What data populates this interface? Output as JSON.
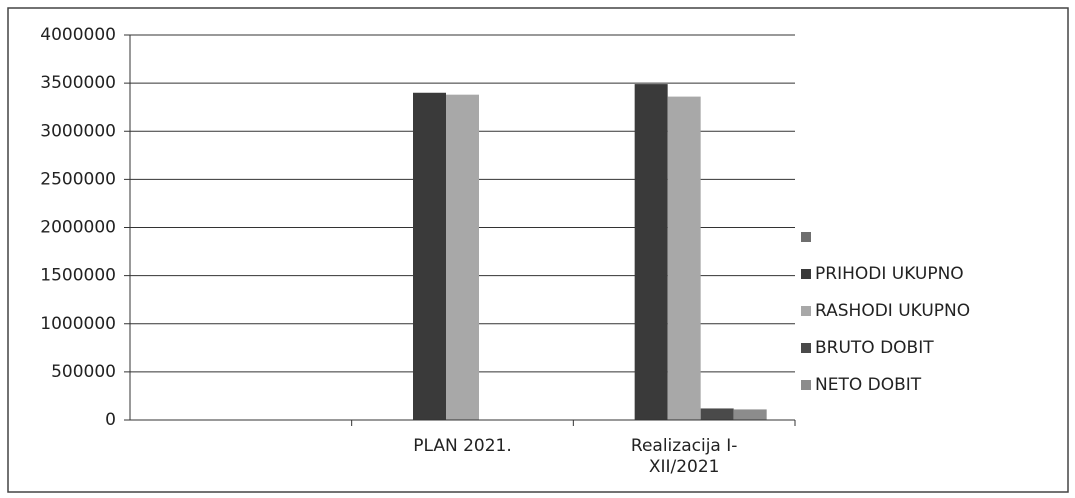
{
  "chart_data": {
    "type": "bar",
    "categories": [
      null,
      "PLAN 2021.",
      "Realizacija I-XII/2021"
    ],
    "series": [
      {
        "name": null,
        "color": "#6e6e6e",
        "values": [
          null,
          null,
          null
        ]
      },
      {
        "name": "PRIHODI UKUPNO",
        "color": "#3a3a3a",
        "values": [
          null,
          3400000,
          3490000
        ]
      },
      {
        "name": "RASHODI UKUPNO",
        "color": "#a8a8a8",
        "values": [
          null,
          3380000,
          3360000
        ]
      },
      {
        "name": "BRUTO DOBIT",
        "color": "#4a4a4a",
        "values": [
          null,
          null,
          120000
        ]
      },
      {
        "name": "NETO DOBIT",
        "color": "#8c8c8c",
        "values": [
          null,
          null,
          110000
        ]
      }
    ],
    "ylim": [
      0,
      4000000
    ],
    "yticks": [
      0,
      500000,
      1000000,
      1500000,
      2000000,
      2500000,
      3000000,
      3500000,
      4000000
    ],
    "grid": true,
    "legend": "right"
  }
}
